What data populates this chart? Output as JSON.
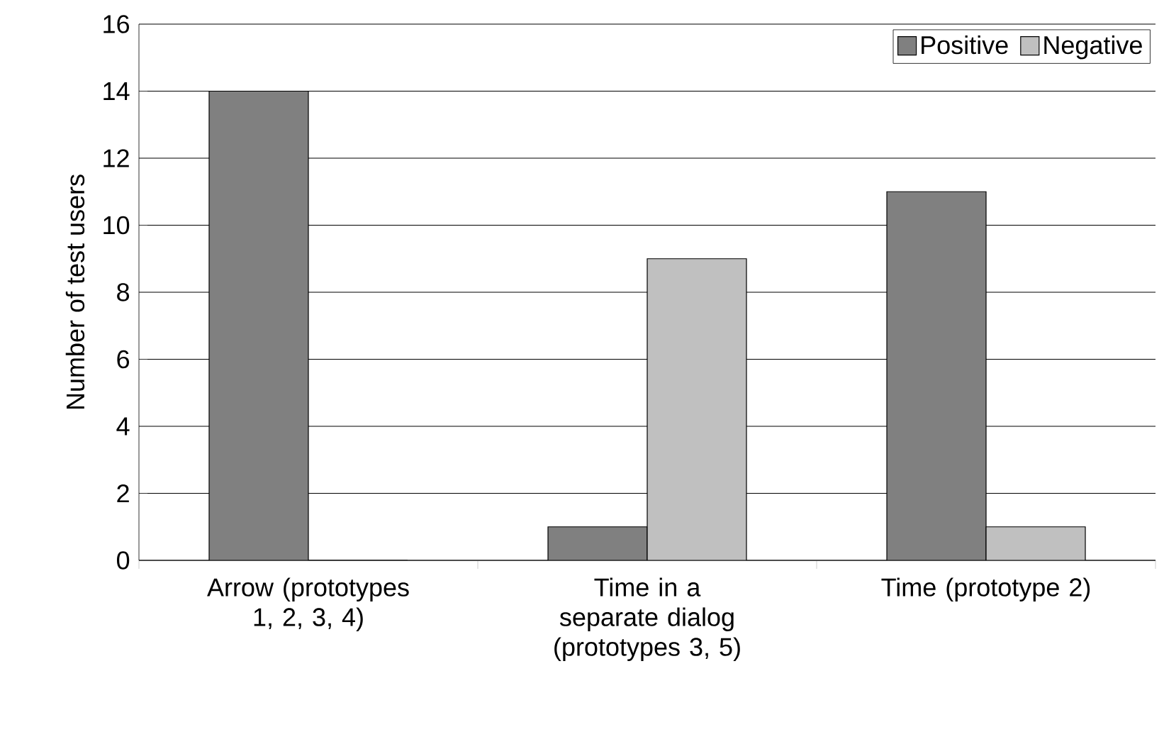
{
  "chart_data": {
    "type": "bar",
    "ylabel": "Number of test users",
    "categories": [
      "Arrow (prototypes 1, 2, 3, 4)",
      "Time in a separate dialog (prototypes 3, 5)",
      "Time (prototype 2)"
    ],
    "series": [
      {
        "name": "Positive",
        "color": "#808080",
        "values": [
          14,
          1,
          11
        ]
      },
      {
        "name": "Negative",
        "color": "#c0c0c0",
        "values": [
          0,
          9,
          1
        ]
      }
    ],
    "ylim": [
      0,
      16
    ],
    "yticks": [
      0,
      2,
      4,
      6,
      8,
      10,
      12,
      14,
      16
    ],
    "grid": "y",
    "legend": "top right"
  }
}
